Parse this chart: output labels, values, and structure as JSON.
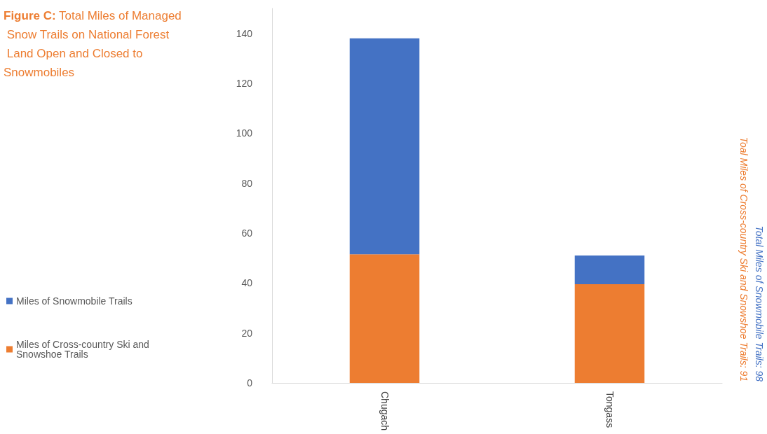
{
  "chart_data": {
    "type": "bar",
    "title": "Figure C: Total Miles of Managed Snow Trails on National Forest Land Open and Closed to Snowmobiles",
    "categories": [
      "Chugach",
      "Tongass"
    ],
    "stacked": true,
    "series": [
      {
        "name": "Miles of Cross-country Ski and Snowshoe Trails",
        "color": "#ed7d31",
        "values": [
          51.5,
          39.5
        ]
      },
      {
        "name": "Miles of Snowmobile Trails",
        "color": "#4472c4",
        "values": [
          86.5,
          11.5
        ]
      }
    ],
    "ylim": [
      0,
      150
    ],
    "yticks": [
      0,
      20,
      40,
      60,
      80,
      100,
      120,
      140
    ],
    "grid": false,
    "legend": "left",
    "annotations": [
      "Total Miles of Snowmobile Trails: 98",
      "Toal Miles of Cross-country Ski and Snowshoe Trails: 91"
    ]
  }
}
